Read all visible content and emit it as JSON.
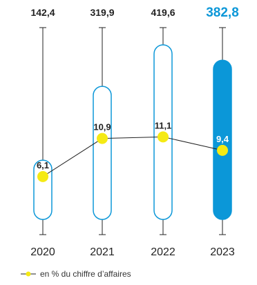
{
  "chart_data": {
    "type": "bar",
    "categories": [
      "2020",
      "2021",
      "2022",
      "2023"
    ],
    "series": [
      {
        "values": [
          142.4,
          319.9,
          419.6,
          382.8
        ],
        "value_labels": [
          "142,4",
          "319,9",
          "419,6",
          "382,8"
        ]
      },
      {
        "name": "en % du chiffre d’affaires",
        "type": "line",
        "values": [
          6.1,
          10.9,
          11.1,
          9.4
        ],
        "value_labels": [
          "6,1",
          "10,9",
          "11,1",
          "9,4"
        ]
      }
    ],
    "highlight_category": "2023",
    "legend_position": "bottom-left",
    "grid": false
  },
  "colors": {
    "accent": "#0b97d8",
    "outline": "#0b97d8",
    "dot": "#f5ea14",
    "line": "#222222",
    "text": "#222222"
  }
}
